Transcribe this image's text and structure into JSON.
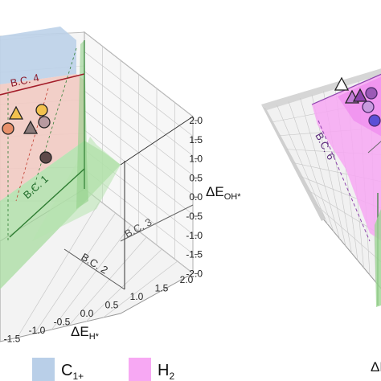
{
  "chart_data": {
    "type": "scatter",
    "subtype": "3d-volcano",
    "panels": [
      {
        "panel": "left",
        "z_ticks": [
          "2.0",
          "1.5",
          "1.0",
          "0.5",
          "0.0",
          "-0.5",
          "-1.0",
          "-1.5",
          "-2.0"
        ],
        "z_label": "ΔE",
        "z_label_sub": "OH*",
        "x_ticks": [
          "2.0",
          "1.5",
          "1.0",
          "0.5",
          "0.0",
          "-0.5",
          "-1.0",
          "-1.5"
        ],
        "x_label": "ΔE",
        "x_label_sub": "H*",
        "boundaries": [
          "B.C. 4",
          "B.C. 1",
          "B.C. 3",
          "B.C. 2"
        ],
        "markers": [
          {
            "shape": "triangle",
            "color": "#f2c14e"
          },
          {
            "shape": "circle",
            "color": "#f2c14e"
          },
          {
            "shape": "circle",
            "color": "#e8906a"
          },
          {
            "shape": "triangle",
            "color": "#8a7a7a"
          },
          {
            "shape": "circle",
            "color": "#b89aa0"
          },
          {
            "shape": "circle",
            "color": "#5e4a4a"
          }
        ]
      },
      {
        "panel": "right",
        "axis_label": "ΔE",
        "boundaries": [
          "B.C. 6"
        ],
        "markers": [
          {
            "shape": "triangle",
            "color": "#ffffff"
          },
          {
            "shape": "triangle",
            "color": "#c27bd6"
          },
          {
            "shape": "triangle",
            "color": "#8e44ad"
          },
          {
            "shape": "circle",
            "color": "#c89adf"
          },
          {
            "shape": "circle",
            "color": "#9b59b6"
          },
          {
            "shape": "circle",
            "color": "#5b4fd6"
          }
        ]
      }
    ],
    "legend": [
      {
        "label": "C",
        "sub": "1+",
        "color": "#b9cfe8"
      },
      {
        "label": "H",
        "sub": "2",
        "color": "#f7a8f3"
      }
    ],
    "legend_position": "bottom"
  }
}
